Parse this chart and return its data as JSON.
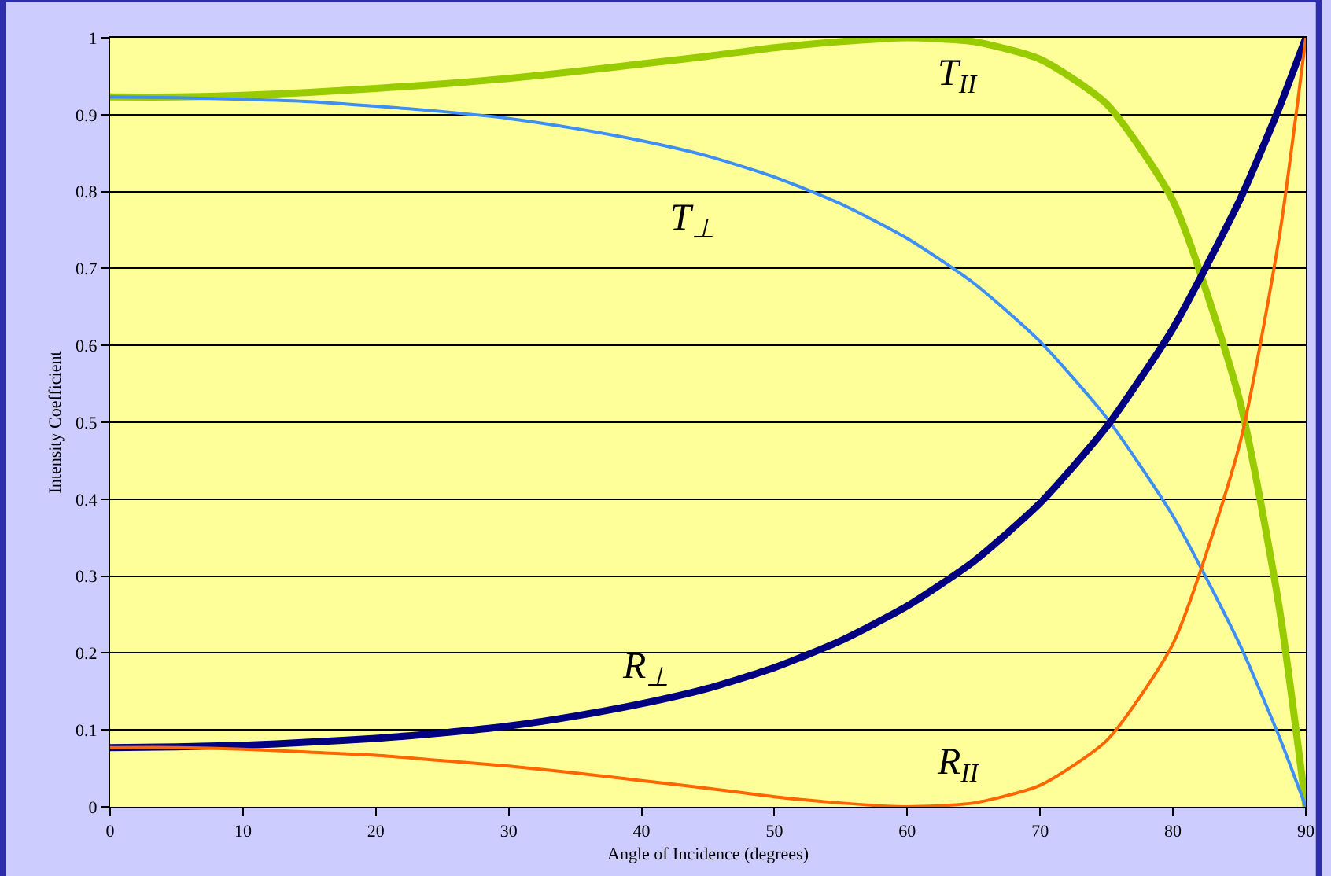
{
  "chart_data": {
    "type": "line",
    "xlabel": "Angle of Incidence (degrees)",
    "ylabel": "Intensity Coefficient",
    "x": [
      0,
      5,
      10,
      15,
      20,
      25,
      30,
      35,
      40,
      45,
      50,
      55,
      60,
      65,
      70,
      75,
      80,
      85,
      88,
      90
    ],
    "series": [
      {
        "name": "T$_{II}$",
        "color": "#99cc00",
        "values": [
          0.923,
          0.923,
          0.925,
          0.929,
          0.934,
          0.94,
          0.947,
          0.956,
          0.966,
          0.976,
          0.987,
          0.995,
          1.0,
          0.995,
          0.972,
          0.914,
          0.788,
          0.53,
          0.259,
          0.0
        ]
      },
      {
        "name": "T$_{⊥}$",
        "color": "#3d8ef5",
        "values": [
          0.923,
          0.922,
          0.92,
          0.917,
          0.911,
          0.904,
          0.895,
          0.882,
          0.866,
          0.846,
          0.819,
          0.784,
          0.739,
          0.681,
          0.605,
          0.506,
          0.378,
          0.212,
          0.091,
          0.0
        ]
      },
      {
        "name": "R$_{⊥}$",
        "color": "#000080",
        "values": [
          0.077,
          0.078,
          0.08,
          0.084,
          0.089,
          0.096,
          0.105,
          0.118,
          0.134,
          0.154,
          0.181,
          0.216,
          0.261,
          0.319,
          0.395,
          0.494,
          0.622,
          0.788,
          0.909,
          1.0
        ]
      },
      {
        "name": "R$_{II}$",
        "color": "#ff6600",
        "values": [
          0.077,
          0.077,
          0.075,
          0.071,
          0.067,
          0.06,
          0.053,
          0.044,
          0.034,
          0.024,
          0.013,
          0.005,
          0.0,
          0.005,
          0.028,
          0.086,
          0.212,
          0.47,
          0.741,
          1.0
        ]
      }
    ],
    "xlim": [
      0,
      90
    ],
    "xticks": [
      0,
      10,
      20,
      30,
      40,
      50,
      60,
      70,
      80,
      90
    ],
    "ylim": [
      0,
      1
    ],
    "yticks": [
      0,
      0.1,
      0.2,
      0.3,
      0.4,
      0.5,
      0.6,
      0.7,
      0.8,
      0.9,
      1
    ],
    "grid": "y",
    "legend": false,
    "marker": "none",
    "line_style": "solid"
  }
}
